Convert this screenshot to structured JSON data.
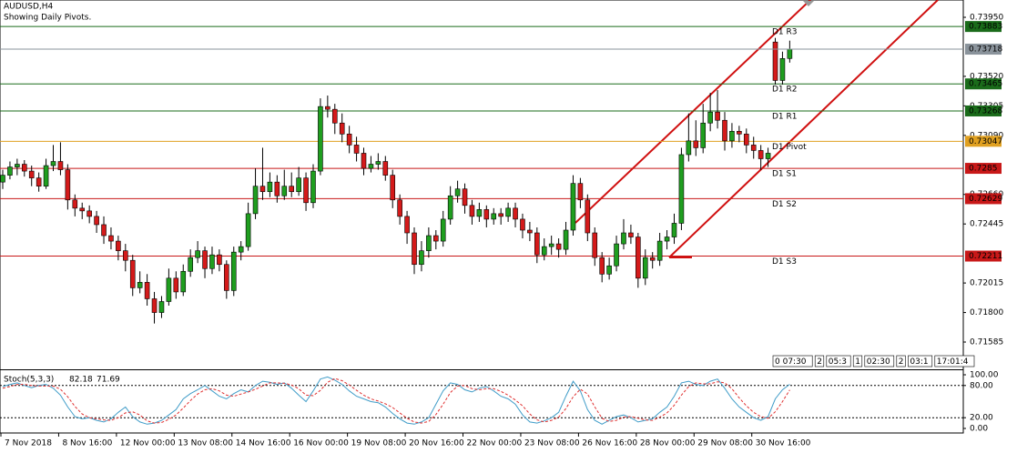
{
  "chart_data": {
    "type": "candlestick",
    "title": "AUDUSD,H4",
    "subtitle": "Showing Daily Pivots.",
    "up_color": "#1f9e1f",
    "down_color": "#d41a1a",
    "wick_color": "#000000",
    "ylim": [
      0.71393,
      0.74076
    ],
    "yticks": [
      {
        "value": 0.7395,
        "label": "0.73950"
      },
      {
        "value": 0.7352,
        "label": "0.73520"
      },
      {
        "value": 0.73305,
        "label": "0.73305"
      },
      {
        "value": 0.7309,
        "label": "0.73090"
      },
      {
        "value": 0.7266,
        "label": "0.72660"
      },
      {
        "value": 0.72445,
        "label": "0.72445"
      },
      {
        "value": 0.72015,
        "label": "0.72015"
      },
      {
        "value": 0.718,
        "label": "0.71800"
      },
      {
        "value": 0.71585,
        "label": "0.71585"
      }
    ],
    "categories": [
      "7 Nov 2018",
      null,
      null,
      null,
      null,
      null,
      null,
      null,
      "8 Nov 16:00",
      null,
      null,
      null,
      null,
      null,
      null,
      null,
      "12 Nov 00:00",
      null,
      null,
      null,
      null,
      null,
      null,
      null,
      "13 Nov 08:00",
      null,
      null,
      null,
      null,
      null,
      null,
      null,
      "14 Nov 16:00",
      null,
      null,
      null,
      null,
      null,
      null,
      null,
      "16 Nov 00:00",
      null,
      null,
      null,
      null,
      null,
      null,
      null,
      "19 Nov 08:00",
      null,
      null,
      null,
      null,
      null,
      null,
      null,
      "20 Nov 16:00",
      null,
      null,
      null,
      null,
      null,
      null,
      null,
      "22 Nov 00:00",
      null,
      null,
      null,
      null,
      null,
      null,
      null,
      "23 Nov 08:00",
      null,
      null,
      null,
      null,
      null,
      null,
      null,
      "26 Nov 16:00",
      null,
      null,
      null,
      null,
      null,
      null,
      null,
      "28 Nov 00:00",
      null,
      null,
      null,
      null,
      null,
      null,
      null,
      "29 Nov 08:00",
      null,
      null,
      null,
      null,
      null,
      null,
      null,
      "30 Nov 16:00",
      null,
      null,
      null,
      null,
      null
    ],
    "candles": [
      [
        0.7275,
        0.7284,
        0.727,
        0.728
      ],
      [
        0.728,
        0.729,
        0.7277,
        0.7286
      ],
      [
        0.7286,
        0.7292,
        0.728,
        0.7288
      ],
      [
        0.7288,
        0.7291,
        0.7279,
        0.7283
      ],
      [
        0.7283,
        0.7287,
        0.7272,
        0.7278
      ],
      [
        0.7278,
        0.7282,
        0.7268,
        0.7272
      ],
      [
        0.7272,
        0.7292,
        0.727,
        0.7287
      ],
      [
        0.7287,
        0.7302,
        0.7283,
        0.729
      ],
      [
        0.729,
        0.7304,
        0.728,
        0.7284
      ],
      [
        0.7284,
        0.7288,
        0.7255,
        0.7262
      ],
      [
        0.7262,
        0.7266,
        0.725,
        0.7256
      ],
      [
        0.7256,
        0.726,
        0.7248,
        0.7254
      ],
      [
        0.7254,
        0.7258,
        0.7245,
        0.725
      ],
      [
        0.725,
        0.7254,
        0.7238,
        0.7244
      ],
      [
        0.7244,
        0.725,
        0.723,
        0.7236
      ],
      [
        0.7236,
        0.7242,
        0.7226,
        0.7232
      ],
      [
        0.7232,
        0.7236,
        0.7218,
        0.7225
      ],
      [
        0.7225,
        0.723,
        0.721,
        0.7218
      ],
      [
        0.7218,
        0.7222,
        0.7192,
        0.7198
      ],
      [
        0.7198,
        0.721,
        0.7194,
        0.7202
      ],
      [
        0.7202,
        0.7208,
        0.7185,
        0.719
      ],
      [
        0.719,
        0.7195,
        0.7172,
        0.718
      ],
      [
        0.718,
        0.7192,
        0.7176,
        0.7188
      ],
      [
        0.7188,
        0.7212,
        0.7185,
        0.7205
      ],
      [
        0.7205,
        0.721,
        0.719,
        0.7195
      ],
      [
        0.7195,
        0.7215,
        0.7192,
        0.721
      ],
      [
        0.721,
        0.7226,
        0.7206,
        0.722
      ],
      [
        0.722,
        0.7232,
        0.7216,
        0.7225
      ],
      [
        0.7225,
        0.7228,
        0.7205,
        0.7212
      ],
      [
        0.7212,
        0.7228,
        0.7208,
        0.7222
      ],
      [
        0.7222,
        0.7226,
        0.721,
        0.7215
      ],
      [
        0.7215,
        0.7218,
        0.719,
        0.7196
      ],
      [
        0.7196,
        0.7228,
        0.7192,
        0.7224
      ],
      [
        0.7224,
        0.7232,
        0.7218,
        0.7228
      ],
      [
        0.7228,
        0.726,
        0.7225,
        0.7252
      ],
      [
        0.7252,
        0.7285,
        0.7248,
        0.7272
      ],
      [
        0.7272,
        0.73,
        0.7262,
        0.7268
      ],
      [
        0.7268,
        0.7282,
        0.7264,
        0.7275
      ],
      [
        0.7275,
        0.728,
        0.726,
        0.7265
      ],
      [
        0.7265,
        0.7284,
        0.7262,
        0.7272
      ],
      [
        0.7272,
        0.7282,
        0.7264,
        0.7268
      ],
      [
        0.7268,
        0.7286,
        0.7265,
        0.7278
      ],
      [
        0.7278,
        0.7282,
        0.7254,
        0.726
      ],
      [
        0.726,
        0.7288,
        0.7256,
        0.7283
      ],
      [
        0.7283,
        0.7336,
        0.728,
        0.733
      ],
      [
        0.733,
        0.7338,
        0.7322,
        0.7328
      ],
      [
        0.7328,
        0.7332,
        0.731,
        0.7318
      ],
      [
        0.7318,
        0.7325,
        0.7304,
        0.731
      ],
      [
        0.731,
        0.7316,
        0.7296,
        0.7302
      ],
      [
        0.7302,
        0.7308,
        0.729,
        0.7296
      ],
      [
        0.7296,
        0.73,
        0.728,
        0.7285
      ],
      [
        0.7285,
        0.7294,
        0.7282,
        0.7288
      ],
      [
        0.7288,
        0.7296,
        0.7284,
        0.729
      ],
      [
        0.729,
        0.7294,
        0.7276,
        0.728
      ],
      [
        0.728,
        0.7284,
        0.7256,
        0.7262
      ],
      [
        0.7262,
        0.7266,
        0.7244,
        0.725
      ],
      [
        0.725,
        0.7254,
        0.723,
        0.7238
      ],
      [
        0.7238,
        0.7242,
        0.7208,
        0.7215
      ],
      [
        0.7215,
        0.7232,
        0.721,
        0.7225
      ],
      [
        0.7225,
        0.7242,
        0.722,
        0.7236
      ],
      [
        0.7236,
        0.724,
        0.7226,
        0.7232
      ],
      [
        0.7232,
        0.7254,
        0.7228,
        0.7248
      ],
      [
        0.7248,
        0.7272,
        0.7244,
        0.7265
      ],
      [
        0.7265,
        0.7276,
        0.726,
        0.727
      ],
      [
        0.727,
        0.7274,
        0.7252,
        0.7258
      ],
      [
        0.7258,
        0.7262,
        0.7244,
        0.725
      ],
      [
        0.725,
        0.726,
        0.7246,
        0.7255
      ],
      [
        0.7255,
        0.7258,
        0.7242,
        0.7248
      ],
      [
        0.7248,
        0.7256,
        0.7244,
        0.7252
      ],
      [
        0.7252,
        0.7256,
        0.7244,
        0.725
      ],
      [
        0.725,
        0.726,
        0.7246,
        0.7256
      ],
      [
        0.7256,
        0.726,
        0.7242,
        0.7248
      ],
      [
        0.7248,
        0.7252,
        0.7234,
        0.724
      ],
      [
        0.724,
        0.7246,
        0.7232,
        0.7238
      ],
      [
        0.7238,
        0.7242,
        0.7216,
        0.7222
      ],
      [
        0.7222,
        0.7234,
        0.7218,
        0.7228
      ],
      [
        0.7228,
        0.7236,
        0.7222,
        0.723
      ],
      [
        0.723,
        0.7234,
        0.722,
        0.7226
      ],
      [
        0.7226,
        0.7246,
        0.7222,
        0.724
      ],
      [
        0.724,
        0.728,
        0.7236,
        0.7274
      ],
      [
        0.7274,
        0.7278,
        0.7256,
        0.7262
      ],
      [
        0.7262,
        0.7266,
        0.7232,
        0.7238
      ],
      [
        0.7238,
        0.7242,
        0.7214,
        0.722
      ],
      [
        0.722,
        0.7224,
        0.7202,
        0.7208
      ],
      [
        0.7208,
        0.722,
        0.7204,
        0.7214
      ],
      [
        0.7214,
        0.7236,
        0.721,
        0.723
      ],
      [
        0.723,
        0.7248,
        0.7226,
        0.7238
      ],
      [
        0.7238,
        0.7244,
        0.723,
        0.7235
      ],
      [
        0.7235,
        0.7238,
        0.7198,
        0.7205
      ],
      [
        0.7205,
        0.7226,
        0.72,
        0.722
      ],
      [
        0.722,
        0.7224,
        0.7212,
        0.7218
      ],
      [
        0.7218,
        0.7238,
        0.7214,
        0.7232
      ],
      [
        0.7232,
        0.724,
        0.7226,
        0.7235
      ],
      [
        0.7235,
        0.7252,
        0.723,
        0.7245
      ],
      [
        0.7245,
        0.73,
        0.724,
        0.7295
      ],
      [
        0.7295,
        0.7325,
        0.729,
        0.7305
      ],
      [
        0.7305,
        0.732,
        0.7294,
        0.73
      ],
      [
        0.73,
        0.7332,
        0.7296,
        0.7318
      ],
      [
        0.7318,
        0.734,
        0.7312,
        0.7326
      ],
      [
        0.7326,
        0.7342,
        0.7314,
        0.732
      ],
      [
        0.732,
        0.7326,
        0.7298,
        0.7305
      ],
      [
        0.7305,
        0.7318,
        0.73,
        0.7312
      ],
      [
        0.7312,
        0.7316,
        0.7304,
        0.731
      ],
      [
        0.731,
        0.7314,
        0.7296,
        0.7302
      ],
      [
        0.7302,
        0.7308,
        0.7292,
        0.7298
      ],
      [
        0.7298,
        0.7302,
        0.7284,
        0.7292
      ],
      [
        0.7292,
        0.73,
        0.7286,
        0.7296
      ],
      [
        0.7377,
        0.738,
        0.7346,
        0.7349
      ],
      [
        0.7349,
        0.737,
        0.7346,
        0.7365
      ],
      [
        0.7365,
        0.7378,
        0.7362,
        0.73718
      ]
    ],
    "levels": [
      {
        "name": "D1 R3",
        "value": 0.73883,
        "color": "#1a6b1a"
      },
      {
        "name": "D1 R2",
        "value": 0.73465,
        "color": "#1a6b1a"
      },
      {
        "name": "D1 R1",
        "value": 0.73268,
        "color": "#1a6b1a"
      },
      {
        "name": "D1 Pivot",
        "value": 0.73047,
        "color": "#e0a020"
      },
      {
        "name": "D1 S1",
        "value": 0.7285,
        "color": "#c81818"
      },
      {
        "name": "D1 S2",
        "value": 0.72629,
        "color": "#c81818"
      },
      {
        "name": "D1 S3",
        "value": 0.72211,
        "color": "#c81818"
      }
    ],
    "current_price": 0.73718,
    "current_color": "#8a939b",
    "timers": [
      "0 07:30",
      "2",
      "05:3",
      "1",
      "02:30",
      "2",
      "03:1",
      "17:01:4"
    ],
    "oscillator": {
      "name": "Stoch(5,3,3)",
      "ylim": [
        -8.5,
        106.8
      ],
      "yticks": [
        {
          "value": 100,
          "label": "100.00"
        },
        {
          "value": 80,
          "label": "80.00"
        },
        {
          "value": 20,
          "label": "20.00"
        },
        {
          "value": 0,
          "label": "0.00"
        }
      ],
      "levels": [
        80,
        20
      ],
      "series": [
        {
          "name": "%K",
          "color": "#3f9cc8",
          "dashed": false,
          "values": [
            78,
            82,
            85,
            80,
            76,
            80,
            82,
            75,
            62,
            40,
            22,
            18,
            20,
            15,
            12,
            18,
            30,
            40,
            22,
            12,
            8,
            10,
            15,
            25,
            35,
            55,
            65,
            72,
            80,
            70,
            60,
            55,
            65,
            72,
            68,
            80,
            88,
            86,
            82,
            85,
            75,
            62,
            50,
            70,
            92,
            96,
            90,
            82,
            70,
            60,
            55,
            50,
            48,
            40,
            28,
            18,
            10,
            8,
            12,
            20,
            45,
            70,
            85,
            82,
            72,
            68,
            75,
            78,
            70,
            60,
            55,
            45,
            25,
            12,
            10,
            14,
            20,
            30,
            60,
            88,
            70,
            35,
            15,
            8,
            15,
            22,
            25,
            20,
            12,
            15,
            18,
            30,
            40,
            60,
            85,
            88,
            82,
            80,
            88,
            92,
            75,
            55,
            40,
            30,
            20,
            15,
            22,
            55,
            72,
            82.18
          ]
        },
        {
          "name": "%D",
          "color": "#e03030",
          "dashed": true,
          "values": [
            75,
            78,
            82,
            82,
            80,
            79,
            79,
            79,
            73,
            59,
            41,
            27,
            20,
            18,
            16,
            15,
            20,
            29,
            31,
            25,
            14,
            10,
            11,
            17,
            25,
            38,
            52,
            64,
            72,
            74,
            70,
            62,
            60,
            64,
            68,
            73,
            79,
            85,
            85,
            84,
            81,
            74,
            62,
            61,
            71,
            86,
            93,
            89,
            81,
            71,
            62,
            55,
            51,
            46,
            39,
            29,
            19,
            12,
            10,
            13,
            26,
            45,
            67,
            79,
            80,
            74,
            72,
            74,
            74,
            69,
            62,
            53,
            42,
            27,
            16,
            12,
            15,
            21,
            37,
            59,
            73,
            64,
            40,
            19,
            13,
            15,
            21,
            22,
            19,
            16,
            15,
            21,
            29,
            43,
            62,
            78,
            85,
            83,
            83,
            87,
            85,
            74,
            57,
            42,
            30,
            22,
            19,
            31,
            50,
            71.69
          ]
        }
      ]
    }
  }
}
